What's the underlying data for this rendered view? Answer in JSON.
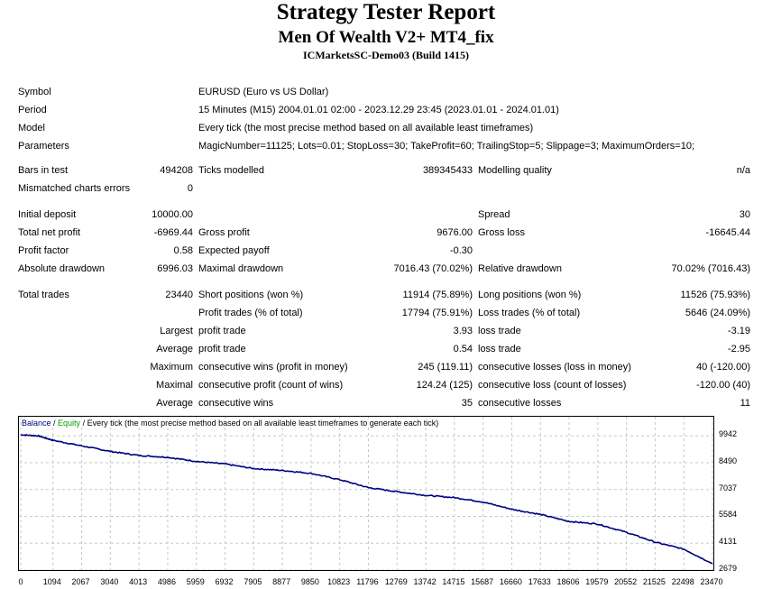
{
  "header": {
    "title": "Strategy Tester Report",
    "subtitle": "Men Of Wealth V2+ MT4_fix",
    "server": "ICMarketsSC-Demo03 (Build 1415)"
  },
  "info": {
    "symbol_label": "Symbol",
    "symbol": "EURUSD (Euro vs US Dollar)",
    "period_label": "Period",
    "period": "15 Minutes (M15) 2004.01.01 02:00 - 2023.12.29 23:45 (2023.01.01 - 2024.01.01)",
    "model_label": "Model",
    "model": "Every tick (the most precise method based on all available least timeframes)",
    "parameters_label": "Parameters",
    "parameters": "MagicNumber=11125; Lots=0.01; StopLoss=30; TakeProfit=60; TrailingStop=5; Slippage=3; MaximumOrders=10;"
  },
  "stats": {
    "bars_label": "Bars in test",
    "bars": "494208",
    "ticks_label": "Ticks modelled",
    "ticks": "389345433",
    "quality_label": "Modelling quality",
    "quality": "n/a",
    "mismatch_label": "Mismatched charts errors",
    "mismatch": "0",
    "deposit_label": "Initial deposit",
    "deposit": "10000.00",
    "spread_label": "Spread",
    "spread": "30",
    "net_label": "Total net profit",
    "net": "-6969.44",
    "gross_profit_label": "Gross profit",
    "gross_profit": "9676.00",
    "gross_loss_label": "Gross loss",
    "gross_loss": "-16645.44",
    "pf_label": "Profit factor",
    "pf": "0.58",
    "payoff_label": "Expected payoff",
    "payoff": "-0.30",
    "abs_dd_label": "Absolute drawdown",
    "abs_dd": "6996.03",
    "max_dd_label": "Maximal drawdown",
    "max_dd": "7016.43 (70.02%)",
    "rel_dd_label": "Relative drawdown",
    "rel_dd": "70.02% (7016.43)",
    "trades_label": "Total trades",
    "trades": "23440",
    "short_label": "Short positions (won %)",
    "short": "11914 (75.89%)",
    "long_label": "Long positions (won %)",
    "long": "11526 (75.93%)",
    "ptrades_label": "Profit trades (% of total)",
    "ptrades": "17794 (75.91%)",
    "ltrades_label": "Loss trades (% of total)",
    "ltrades": "5646 (24.09%)",
    "largest_label": "Largest",
    "largest_profit_label": "profit trade",
    "largest_profit": "3.93",
    "largest_loss_label": "loss trade",
    "largest_loss": "-3.19",
    "average_label": "Average",
    "average_profit_label": "profit trade",
    "average_profit": "0.54",
    "average_loss_label": "loss trade",
    "average_loss": "-2.95",
    "maximum_label": "Maximum",
    "max_wins_label": "consecutive wins (profit in money)",
    "max_wins": "245 (119.11)",
    "max_losses_label": "consecutive losses (loss in money)",
    "max_losses": "40 (-120.00)",
    "maximal_label": "Maximal",
    "maxl_profit_label": "consecutive profit (count of wins)",
    "maxl_profit": "124.24 (125)",
    "maxl_loss_label": "consecutive loss (count of losses)",
    "maxl_loss": "-120.00 (40)",
    "avg_label": "Average",
    "avg_wins_label": "consecutive wins",
    "avg_wins": "35",
    "avg_losses_label": "consecutive losses",
    "avg_losses": "11"
  },
  "chart_data": {
    "type": "line",
    "legend": {
      "balance": "Balance",
      "sep1": " / ",
      "equity": "Equity",
      "rest": " / Every tick (the most precise method based on all available least timeframes to generate each tick)"
    },
    "y_ticks": [
      "9942",
      "8490",
      "7037",
      "5584",
      "4131",
      "2679"
    ],
    "x_ticks": [
      "0",
      "1094",
      "2067",
      "3040",
      "4013",
      "4986",
      "5959",
      "6932",
      "7905",
      "8877",
      "9850",
      "10823",
      "11796",
      "12769",
      "13742",
      "14715",
      "15687",
      "16660",
      "17633",
      "18606",
      "19579",
      "20552",
      "21525",
      "22498",
      "23470"
    ],
    "ylim": [
      2679,
      10000
    ],
    "xlim": [
      0,
      23440
    ],
    "series": [
      {
        "name": "Balance",
        "color": "#000080",
        "points": [
          [
            0,
            10000
          ],
          [
            600,
            9940
          ],
          [
            1094,
            9700
          ],
          [
            2067,
            9400
          ],
          [
            3040,
            9100
          ],
          [
            4013,
            8880
          ],
          [
            4986,
            8780
          ],
          [
            5959,
            8560
          ],
          [
            6932,
            8420
          ],
          [
            7905,
            8170
          ],
          [
            8877,
            8070
          ],
          [
            9850,
            7910
          ],
          [
            10823,
            7570
          ],
          [
            11796,
            7140
          ],
          [
            12769,
            6920
          ],
          [
            13742,
            6720
          ],
          [
            14715,
            6600
          ],
          [
            15687,
            6360
          ],
          [
            16660,
            5970
          ],
          [
            17633,
            5690
          ],
          [
            18606,
            5310
          ],
          [
            19579,
            5170
          ],
          [
            20552,
            4720
          ],
          [
            21525,
            4190
          ],
          [
            22498,
            3810
          ],
          [
            23470,
            3030
          ]
        ]
      }
    ],
    "grid": true,
    "colors": {
      "balance": "#000080",
      "equity": "#00a000",
      "grid": "#c8c8c8"
    }
  }
}
